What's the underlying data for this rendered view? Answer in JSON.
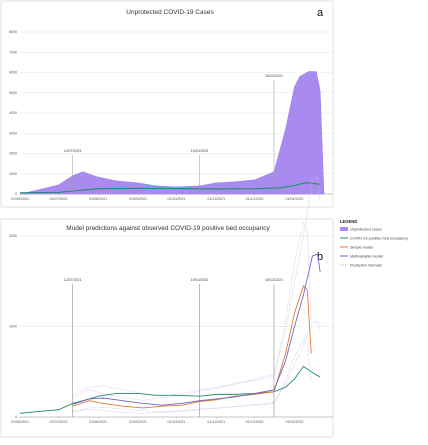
{
  "colors": {
    "unprotected": "#A98BF0",
    "bed": "#1F8F6A",
    "simple": "#E07A33",
    "multivariable": "#6F63C9",
    "intervals": "#C9C2EA",
    "annotation_line": "#9A9A9A",
    "grid": "#DDDDDD"
  },
  "chart_data": [
    {
      "type": "area",
      "panel": "a",
      "title": "Unprotected COVID-19 Cases",
      "x_tick_labels": [
        "01/06/2021",
        "01/07/2021",
        "01/08/2021",
        "01/09/2021",
        "01/10/2021",
        "01/11/2021",
        "01/12/2021",
        "01/01/2022"
      ],
      "y_ticks": [
        0,
        1000,
        2000,
        3000,
        4000,
        5000,
        6000,
        7000,
        8000
      ],
      "ylim": [
        0,
        8000
      ],
      "annotations": [
        "12/07/2021",
        "19/10/2021",
        "16/12/2021"
      ],
      "series": [
        {
          "name": "Unprotected cases",
          "x": [
            "2021-06-01",
            "2021-06-15",
            "2021-07-01",
            "2021-07-12",
            "2021-07-20",
            "2021-07-31",
            "2021-08-15",
            "2021-09-01",
            "2021-09-15",
            "2021-10-01",
            "2021-10-19",
            "2021-11-01",
            "2021-11-15",
            "2021-12-01",
            "2021-12-16",
            "2021-12-25",
            "2022-01-01",
            "2022-01-05",
            "2022-01-12",
            "2022-01-18",
            "2022-01-21",
            "2022-01-24"
          ],
          "values": [
            0,
            200,
            450,
            900,
            1100,
            850,
            650,
            550,
            400,
            350,
            400,
            550,
            600,
            700,
            1100,
            3200,
            5300,
            5800,
            6050,
            6050,
            5100,
            0
          ]
        },
        {
          "name": "COVID-19 positive bed occupancy",
          "x": [
            "2021-06-01",
            "2021-07-01",
            "2021-08-01",
            "2021-09-01",
            "2021-10-01",
            "2021-11-01",
            "2021-12-01",
            "2021-12-20",
            "2022-01-01",
            "2022-01-10",
            "2022-01-21"
          ],
          "values": [
            60,
            80,
            260,
            280,
            270,
            250,
            260,
            300,
            420,
            560,
            480
          ]
        }
      ]
    },
    {
      "type": "line",
      "panel": "b",
      "title": "Model predictions against observed COVID-19 positive bed occupancy",
      "x_tick_labels": [
        "01/06/2021",
        "01/07/2021",
        "01/08/2021",
        "01/09/2021",
        "01/10/2021",
        "01/11/2021",
        "01/12/2021",
        "01/01/2022"
      ],
      "y_ticks": [
        0,
        1000,
        2000
      ],
      "ylim": [
        0,
        2000
      ],
      "annotations": [
        "12/07/2021",
        "19/10/2021",
        "16/12/2021"
      ],
      "series": [
        {
          "name": "COVID-19 positive bed occupancy",
          "x": [
            "2021-06-01",
            "2021-06-15",
            "2021-07-01",
            "2021-07-12",
            "2021-07-25",
            "2021-08-01",
            "2021-08-15",
            "2021-09-01",
            "2021-09-15",
            "2021-10-01",
            "2021-10-19",
            "2021-11-01",
            "2021-11-15",
            "2021-12-01",
            "2021-12-16",
            "2021-12-25",
            "2022-01-01",
            "2022-01-08",
            "2022-01-14",
            "2022-01-21"
          ],
          "values": [
            40,
            60,
            80,
            150,
            200,
            230,
            260,
            260,
            240,
            240,
            230,
            250,
            250,
            260,
            280,
            330,
            420,
            560,
            500,
            440
          ]
        },
        {
          "name": "Simple model",
          "x": [
            "2021-07-12",
            "2021-07-25",
            "2021-08-05",
            "2021-08-20",
            "2021-09-05",
            "2021-09-20",
            "2021-10-05",
            "2021-10-19",
            "2021-11-01",
            "2021-11-15",
            "2021-12-01",
            "2021-12-16",
            "2021-12-25",
            "2022-01-01",
            "2022-01-08",
            "2022-01-11",
            "2022-01-14"
          ],
          "values": [
            120,
            180,
            150,
            120,
            100,
            120,
            130,
            170,
            190,
            230,
            250,
            280,
            700,
            1150,
            1450,
            1400,
            700
          ]
        },
        {
          "name": "Multivariable model",
          "x": [
            "2021-07-12",
            "2021-07-25",
            "2021-08-05",
            "2021-08-20",
            "2021-09-05",
            "2021-09-20",
            "2021-10-05",
            "2021-10-19",
            "2021-11-01",
            "2021-11-15",
            "2021-12-01",
            "2021-12-16",
            "2021-12-25",
            "2022-01-01",
            "2022-01-08",
            "2022-01-15",
            "2022-01-19",
            "2022-01-21"
          ],
          "values": [
            140,
            200,
            210,
            180,
            150,
            130,
            150,
            180,
            200,
            220,
            260,
            300,
            620,
            1000,
            1350,
            1780,
            1800,
            1600
          ]
        }
      ]
    }
  ],
  "legend": {
    "title": "LEGEND",
    "entries": [
      {
        "label": "Unprotected cases"
      },
      {
        "label": "COVID-19 positive bed occupancy"
      },
      {
        "label": "Simple model"
      },
      {
        "label": "Multivariable model"
      },
      {
        "label": "Prediction intervals"
      }
    ]
  }
}
